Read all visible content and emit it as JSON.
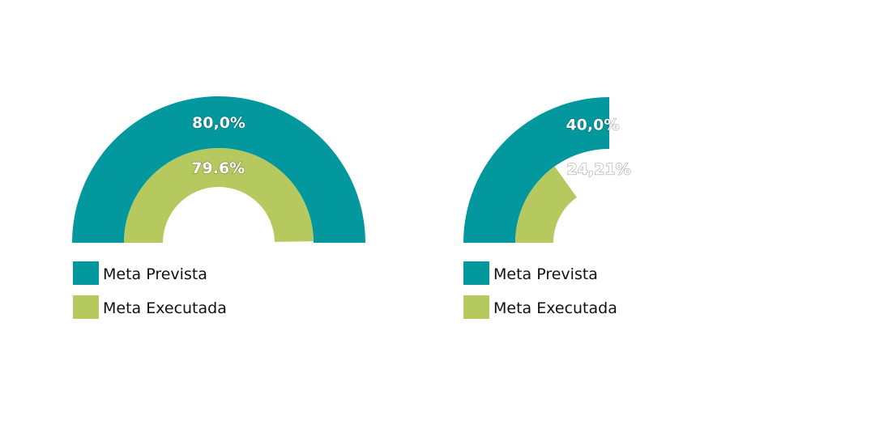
{
  "colors": {
    "prevista": "#03989e",
    "executada": "#b5c95f"
  },
  "chart_data": [
    {
      "type": "radial-bar",
      "scale_max_percent": 100,
      "series": [
        {
          "name": "Meta Prevista",
          "value": 80.0,
          "label": "80,0%",
          "color": "#03989e"
        },
        {
          "name": "Meta Executada",
          "value": 79.6,
          "label": "79.6%",
          "color": "#b5c95f"
        }
      ],
      "legend": [
        "Meta Prevista",
        "Meta Executada"
      ],
      "legend_position": "bottom-left"
    },
    {
      "type": "radial-bar",
      "scale_max_percent": 100,
      "series": [
        {
          "name": "Meta Prevista",
          "value": 40.0,
          "label": "40,0%",
          "color": "#03989e"
        },
        {
          "name": "Meta Executada",
          "value": 24.21,
          "label": "24,21%",
          "color": "#b5c95f"
        }
      ],
      "legend": [
        "Meta Prevista",
        "Meta Executada"
      ],
      "legend_position": "bottom-left"
    }
  ]
}
